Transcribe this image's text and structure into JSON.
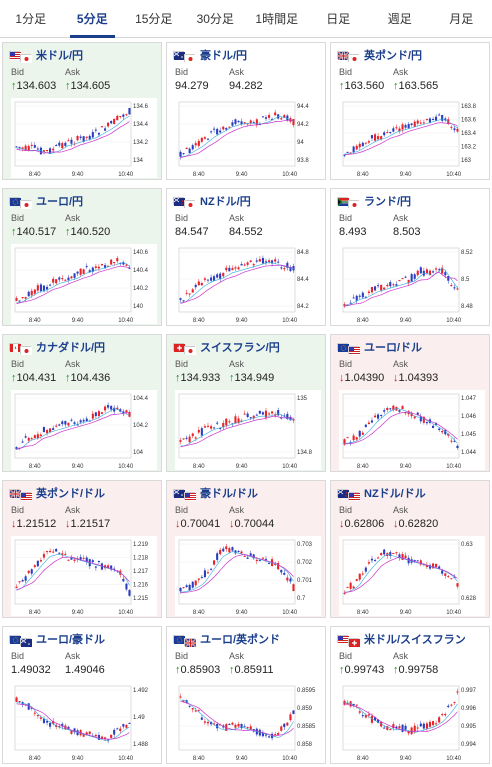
{
  "tabs": [
    "1分足",
    "5分足",
    "15分足",
    "30分足",
    "1時間足",
    "日足",
    "週足",
    "月足"
  ],
  "active_tab": 1,
  "bid_label": "Bid",
  "ask_label": "Ask",
  "x_labels": [
    "8:40",
    "9:40",
    "10:40"
  ],
  "colors": {
    "up_bg": "#ecf5ec",
    "down_bg": "#fbeeee",
    "candle_up": "#e8232a",
    "candle_down": "#2a3fbf",
    "ma_short": "#33aadd",
    "ma_long": "#cc33cc"
  },
  "cards": [
    {
      "name": "米ドル/円",
      "state": "up",
      "bid": "134.603",
      "ask": "134.605",
      "bid_dir": "up",
      "ask_dir": "up",
      "flags": [
        "us",
        "jp"
      ],
      "ticks": [
        "134.6",
        "134.4",
        "134.2",
        "134"
      ]
    },
    {
      "name": "豪ドル/円",
      "state": "neutral",
      "bid": "94.279",
      "ask": "94.282",
      "bid_dir": "",
      "ask_dir": "",
      "flags": [
        "au",
        "jp"
      ],
      "ticks": [
        "94.4",
        "94.2",
        "94",
        "93.8"
      ]
    },
    {
      "name": "英ポンド/円",
      "state": "neutral",
      "bid": "163.560",
      "ask": "163.565",
      "bid_dir": "up",
      "ask_dir": "up",
      "flags": [
        "gb",
        "jp"
      ],
      "ticks": [
        "163.8",
        "163.6",
        "163.4",
        "163.2",
        "163"
      ]
    },
    {
      "name": "ユーロ/円",
      "state": "up",
      "bid": "140.517",
      "ask": "140.520",
      "bid_dir": "up",
      "ask_dir": "up",
      "flags": [
        "eu",
        "jp"
      ],
      "ticks": [
        "140.6",
        "140.4",
        "140.2",
        "140"
      ]
    },
    {
      "name": "NZドル/円",
      "state": "neutral",
      "bid": "84.547",
      "ask": "84.552",
      "bid_dir": "",
      "ask_dir": "",
      "flags": [
        "nz",
        "jp"
      ],
      "ticks": [
        "84.8",
        "84.4",
        "84.2"
      ]
    },
    {
      "name": "ランド/円",
      "state": "neutral",
      "bid": "8.493",
      "ask": "8.503",
      "bid_dir": "",
      "ask_dir": "",
      "flags": [
        "za",
        "jp"
      ],
      "ticks": [
        "8.52",
        "8.5",
        "8.48"
      ]
    },
    {
      "name": "カナダドル/円",
      "state": "up",
      "bid": "104.431",
      "ask": "104.436",
      "bid_dir": "up",
      "ask_dir": "up",
      "flags": [
        "ca",
        "jp"
      ],
      "ticks": [
        "104.4",
        "104.2",
        "104"
      ]
    },
    {
      "name": "スイスフラン/円",
      "state": "up",
      "bid": "134.933",
      "ask": "134.949",
      "bid_dir": "up",
      "ask_dir": "up",
      "flags": [
        "ch",
        "jp"
      ],
      "ticks": [
        "135",
        "134.8"
      ]
    },
    {
      "name": "ユーロ/ドル",
      "state": "down",
      "bid": "1.04390",
      "ask": "1.04393",
      "bid_dir": "down",
      "ask_dir": "down",
      "flags": [
        "eu",
        "us"
      ],
      "ticks": [
        "1.047",
        "1.046",
        "1.045",
        "1.044"
      ]
    },
    {
      "name": "英ポンド/ドル",
      "state": "down",
      "bid": "1.21512",
      "ask": "1.21517",
      "bid_dir": "down",
      "ask_dir": "down",
      "flags": [
        "gb",
        "us"
      ],
      "ticks": [
        "1.219",
        "1.218",
        "1.217",
        "1.216",
        "1.215"
      ]
    },
    {
      "name": "豪ドル/ドル",
      "state": "down",
      "bid": "0.70041",
      "ask": "0.70044",
      "bid_dir": "down",
      "ask_dir": "down",
      "flags": [
        "au",
        "us"
      ],
      "ticks": [
        "0.703",
        "0.702",
        "0.701",
        "0.7"
      ]
    },
    {
      "name": "NZドル/ドル",
      "state": "down",
      "bid": "0.62806",
      "ask": "0.62820",
      "bid_dir": "down",
      "ask_dir": "down",
      "flags": [
        "nz",
        "us"
      ],
      "ticks": [
        "0.63",
        "0.628"
      ]
    },
    {
      "name": "ユーロ/豪ドル",
      "state": "neutral",
      "bid": "1.49032",
      "ask": "1.49046",
      "bid_dir": "",
      "ask_dir": "",
      "flags": [
        "eu",
        "au"
      ],
      "ticks": [
        "1.492",
        "1.49",
        "1.488"
      ]
    },
    {
      "name": "ユーロ/英ポンド",
      "state": "neutral",
      "bid": "0.85903",
      "ask": "0.85911",
      "bid_dir": "up",
      "ask_dir": "up",
      "flags": [
        "eu",
        "gb"
      ],
      "ticks": [
        "0.8595",
        "0.859",
        "0.8585",
        "0.858"
      ]
    },
    {
      "name": "米ドル/スイスフラン",
      "state": "neutral",
      "bid": "0.99743",
      "ask": "0.99758",
      "bid_dir": "up",
      "ask_dir": "up",
      "flags": [
        "us",
        "ch"
      ],
      "ticks": [
        "0.997",
        "0.996",
        "0.995",
        "0.994"
      ]
    }
  ]
}
